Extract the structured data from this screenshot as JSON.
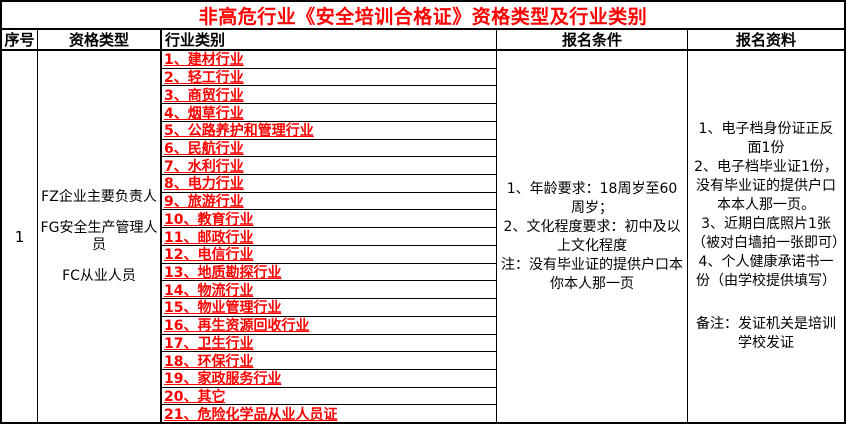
{
  "title": "非高危行业《安全培训合格证》资格类型及行业类别",
  "columns": {
    "serial": "序号",
    "qual_type": "资格类型",
    "industry": "行业类别",
    "conditions": "报名条件",
    "materials": "报名资料"
  },
  "row": {
    "serial": "1",
    "qual_types": [
      "FZ企业主要负责人",
      "FG安全生产管理人员",
      "FC从业人员"
    ],
    "industries": [
      "1、建材行业",
      "2、轻工行业",
      "3、商贸行业",
      "4、烟草行业",
      "5、公路养护和管理行业",
      "6、民航行业",
      "7、水利行业",
      "8、电力行业",
      "9、旅游行业",
      "10、教育行业",
      "11、邮政行业",
      "12、电信行业",
      "13、地质勘探行业",
      "14、物流行业",
      "15、物业管理行业",
      "16、再生资源回收行业",
      "17、卫生行业",
      "18、环保行业",
      "19、家政服务行业",
      "20、其它",
      "21、危险化学品从业人员证"
    ],
    "conditions": [
      "1、年龄要求：18周岁至60周岁；",
      "2、文化程度要求：初中及以上文化程度",
      "注：没有毕业证的提供户口本你本人那一页"
    ],
    "materials": [
      "1、电子档身份证正反面1份",
      "2、电子档毕业证1份，没有毕业证的提供户口本本人那一页。",
      "3、近期白底照片1张（被对白墙拍一张即可）",
      "4、个人健康承诺书一份（由学校提供填写）"
    ],
    "materials_note": "备注：发证机关是培训学校发证"
  },
  "colors": {
    "accent_red": "#ff0000",
    "border": "#000000",
    "background": "#ffffff"
  }
}
